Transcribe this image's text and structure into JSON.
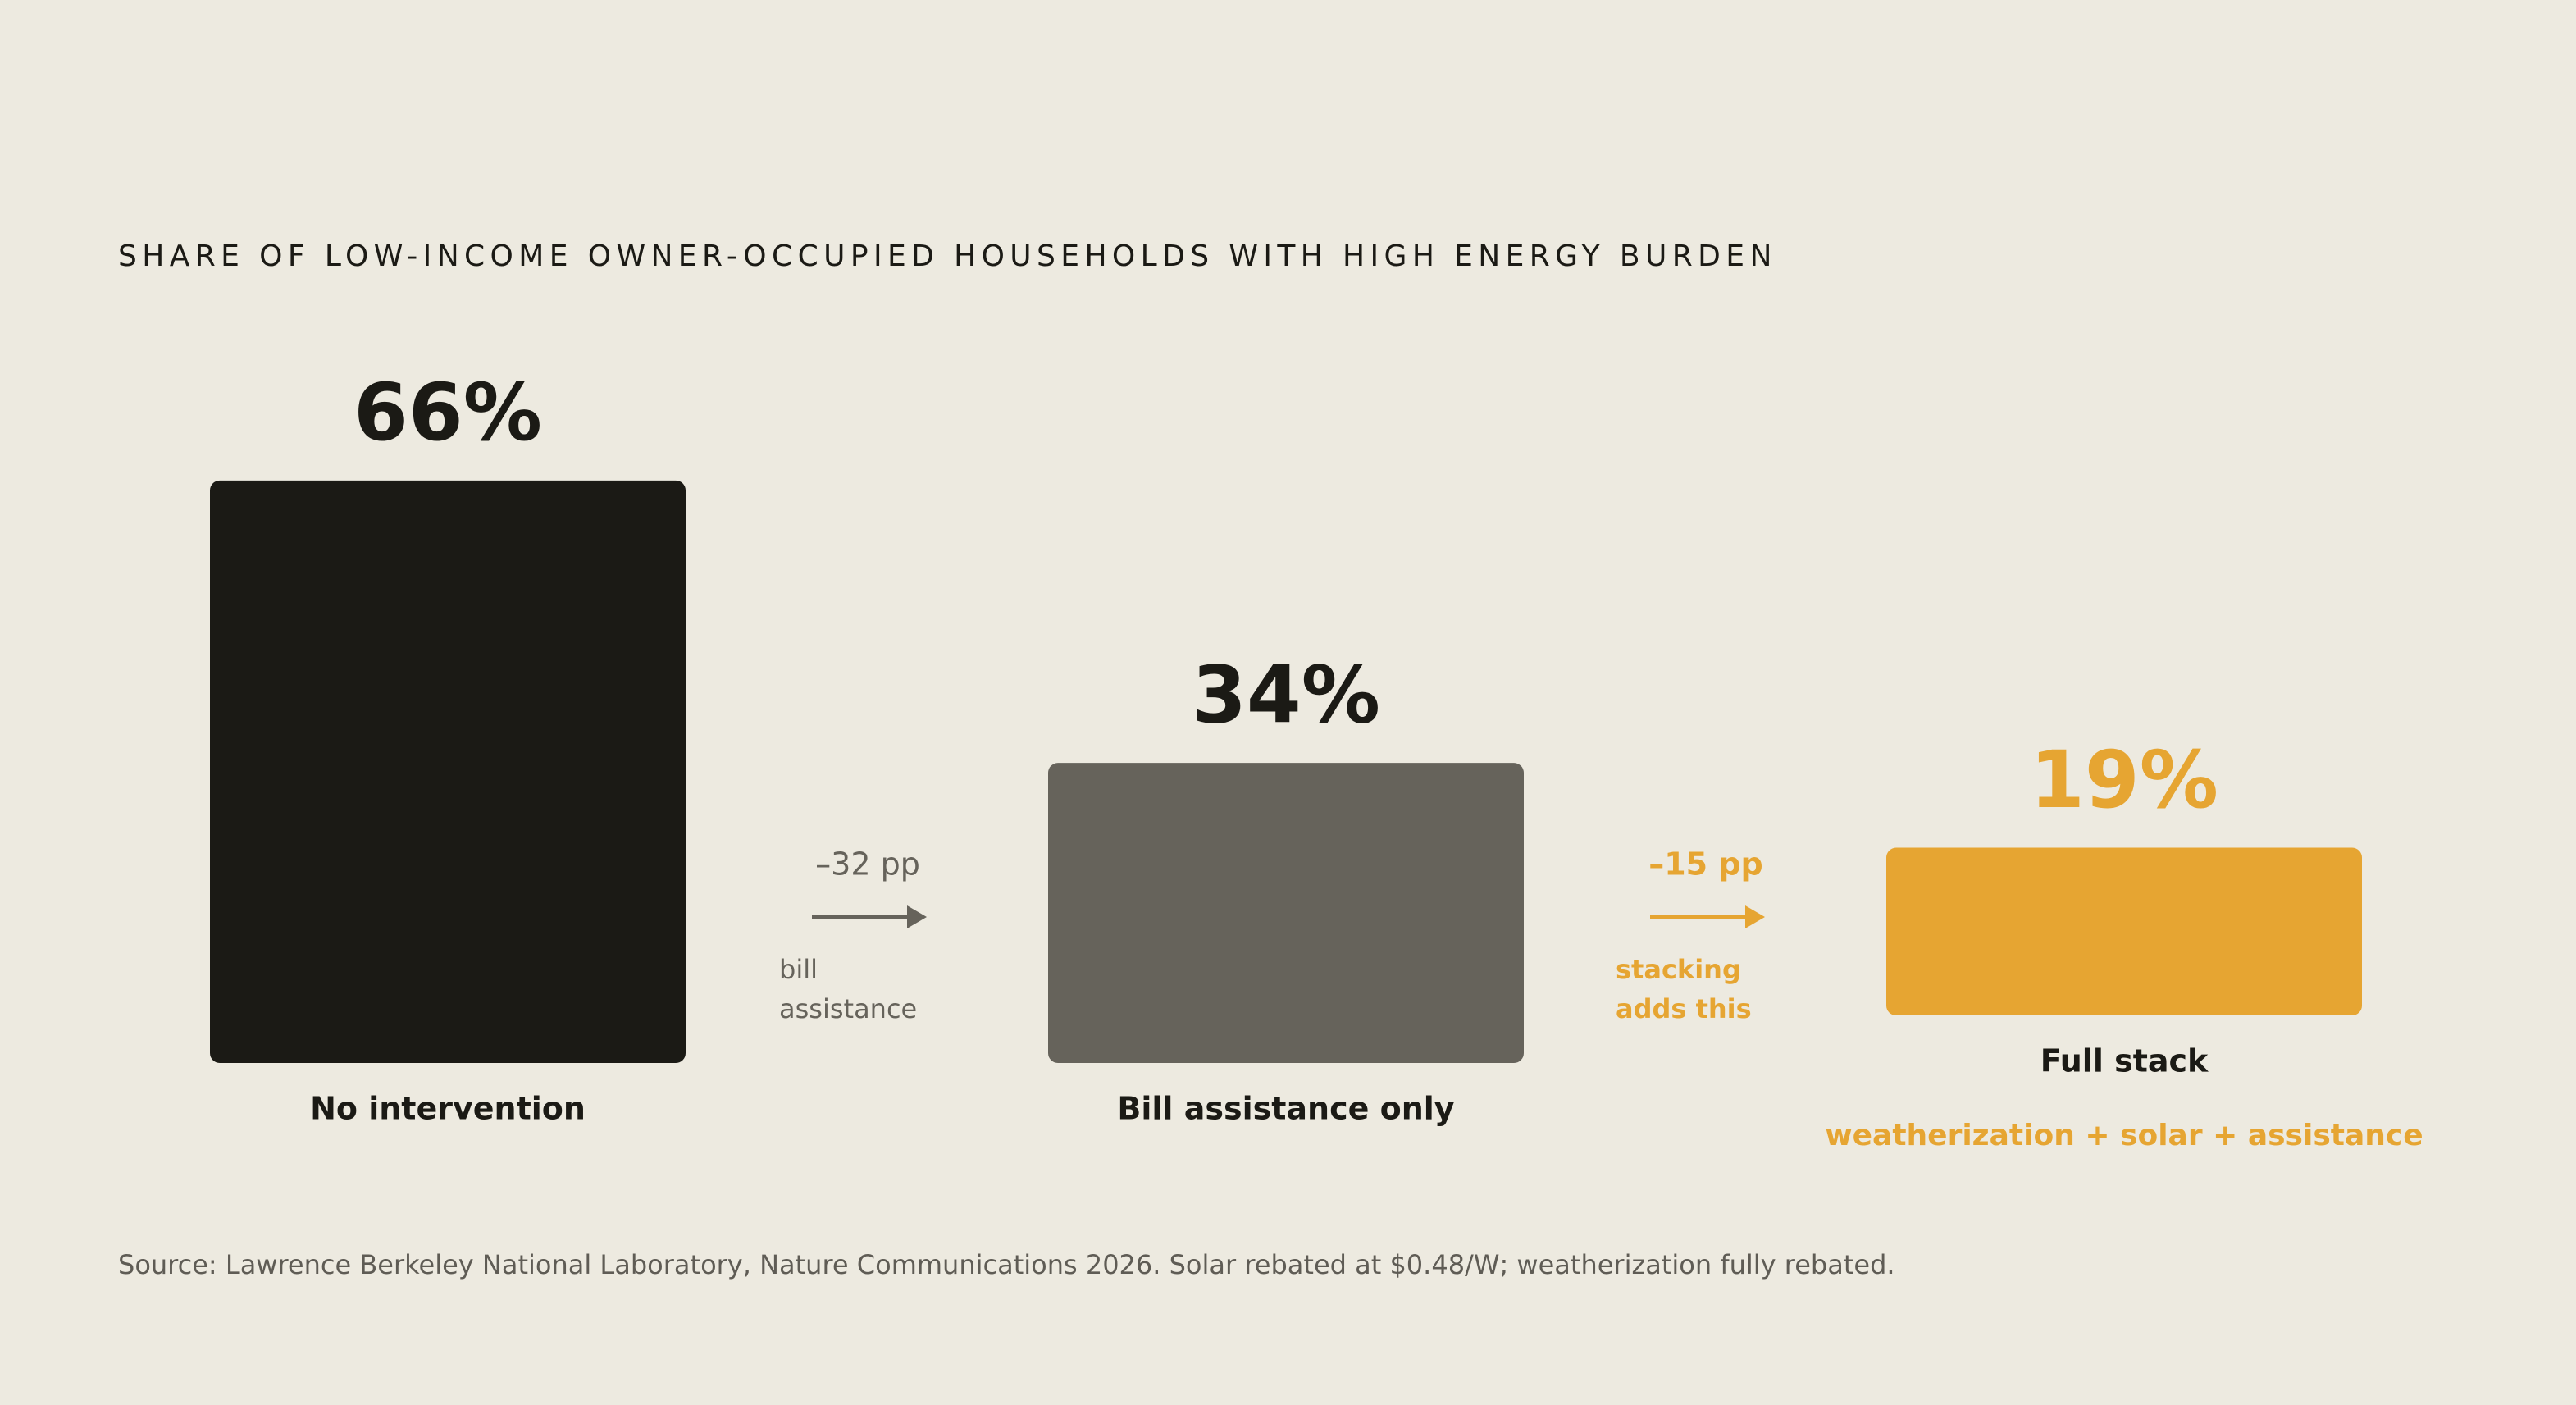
{
  "chart_data": {
    "type": "bar",
    "title": "SHARE OF LOW-INCOME OWNER-OCCUPIED HOUSEHOLDS WITH HIGH ENERGY BURDEN",
    "categories": [
      "No intervention",
      "Bill assistance only",
      "Full stack"
    ],
    "values": [
      66,
      34,
      19
    ],
    "value_labels": [
      "66%",
      "34%",
      "19%"
    ],
    "colors": [
      "#1b1a15",
      "#66635b",
      "#e6a532"
    ],
    "category_notes": [
      null,
      null,
      "weatherization + solar + assistance"
    ],
    "annotations": [
      {
        "change": "–32 pp",
        "lines": [
          "bill",
          "assistance"
        ],
        "color": "#66635b"
      },
      {
        "change": "–15 pp",
        "lines": [
          "stacking",
          "adds this"
        ],
        "color": "#e6a532"
      }
    ],
    "source": "Source: Lawrence Berkeley National Laboratory, Nature Communications 2026. Solar rebated at $0.48/W; weatherization fully rebated."
  }
}
